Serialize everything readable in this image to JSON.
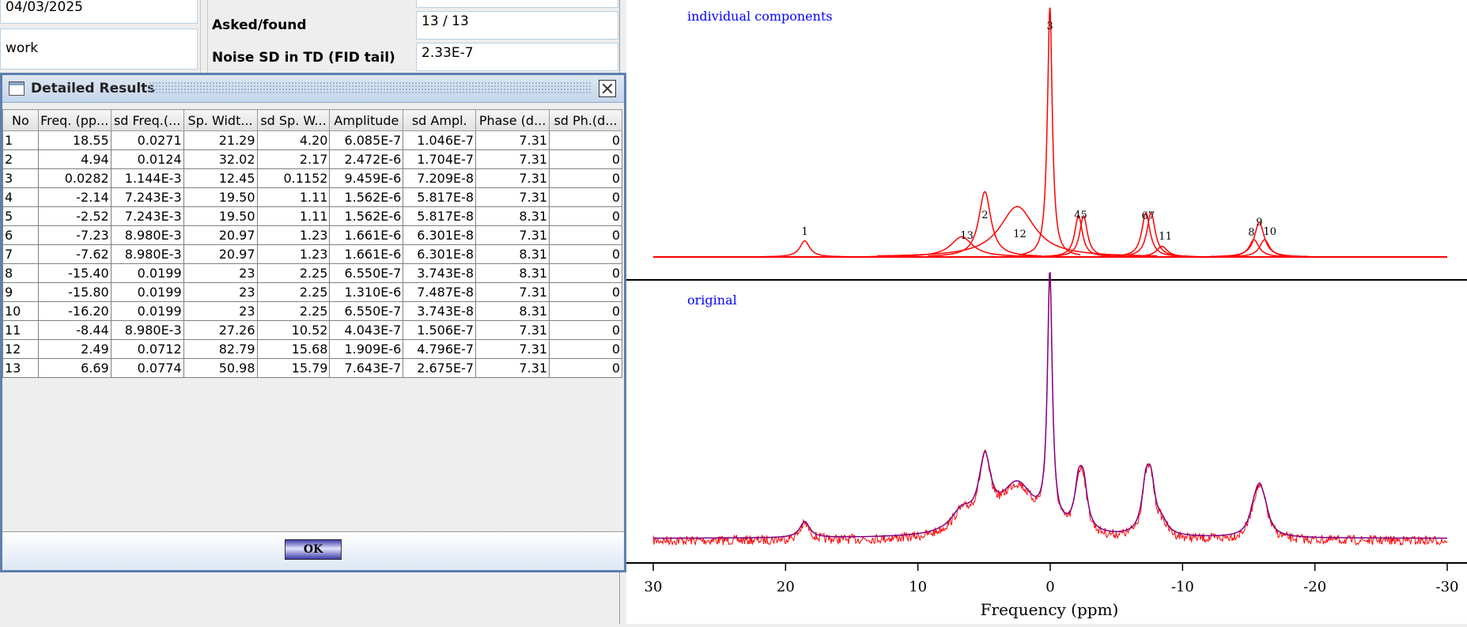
{
  "background": {
    "date_value": "04/03/2025",
    "work_label": "work",
    "asked_found_label": "Asked/found",
    "asked_found_value": "13 / 13",
    "noise_label": "Noise SD in TD (FID tail)",
    "noise_value": "2.33E-7"
  },
  "window": {
    "title": "Detailed Results",
    "ok_label": "OK"
  },
  "table": {
    "columns": [
      "No",
      "Freq. (pp...",
      "sd Freq.(...",
      "Sp. Widt...",
      "sd Sp. W...",
      "Amplitude",
      "sd Ampl.",
      "Phase (d...",
      "sd Ph.(d..."
    ],
    "rows": [
      [
        "1",
        "18.55",
        "0.0271",
        "21.29",
        "4.20",
        "6.085E-7",
        "1.046E-7",
        "7.31",
        "0"
      ],
      [
        "2",
        "4.94",
        "0.0124",
        "32.02",
        "2.17",
        "2.472E-6",
        "1.704E-7",
        "7.31",
        "0"
      ],
      [
        "3",
        "0.0282",
        "1.144E-3",
        "12.45",
        "0.1152",
        "9.459E-6",
        "7.209E-8",
        "7.31",
        "0"
      ],
      [
        "4",
        "-2.14",
        "7.243E-3",
        "19.50",
        "1.11",
        "1.562E-6",
        "5.817E-8",
        "7.31",
        "0"
      ],
      [
        "5",
        "-2.52",
        "7.243E-3",
        "19.50",
        "1.11",
        "1.562E-6",
        "5.817E-8",
        "8.31",
        "0"
      ],
      [
        "6",
        "-7.23",
        "8.980E-3",
        "20.97",
        "1.23",
        "1.661E-6",
        "6.301E-8",
        "7.31",
        "0"
      ],
      [
        "7",
        "-7.62",
        "8.980E-3",
        "20.97",
        "1.23",
        "1.661E-6",
        "6.301E-8",
        "8.31",
        "0"
      ],
      [
        "8",
        "-15.40",
        "0.0199",
        "23",
        "2.25",
        "6.550E-7",
        "3.743E-8",
        "8.31",
        "0"
      ],
      [
        "9",
        "-15.80",
        "0.0199",
        "23",
        "2.25",
        "1.310E-6",
        "7.487E-8",
        "7.31",
        "0"
      ],
      [
        "10",
        "-16.20",
        "0.0199",
        "23",
        "2.25",
        "6.550E-7",
        "3.743E-8",
        "8.31",
        "0"
      ],
      [
        "11",
        "-8.44",
        "8.980E-3",
        "27.26",
        "10.52",
        "4.043E-7",
        "1.506E-7",
        "7.31",
        "0"
      ],
      [
        "12",
        "2.49",
        "0.0712",
        "82.79",
        "15.68",
        "1.909E-6",
        "4.796E-7",
        "7.31",
        "0"
      ],
      [
        "13",
        "6.69",
        "0.0774",
        "50.98",
        "15.79",
        "7.643E-7",
        "2.675E-7",
        "7.31",
        "0"
      ]
    ]
  },
  "chart_data": {
    "type": "line",
    "xlabel": "Frequency (ppm)",
    "xlim": [
      30,
      -30
    ],
    "x_ticks": [
      "30",
      "20",
      "10",
      "0",
      "-10",
      "-20",
      "-30"
    ],
    "colors": {
      "components": "#ff0000",
      "original": "#ff0000",
      "fit": "#800080",
      "label": "#0000ff"
    },
    "panels": [
      {
        "name": "individual components",
        "peak_labels": [
          "1",
          "2",
          "3",
          "45",
          "67",
          "9",
          "8",
          "10",
          "11",
          "12",
          "13"
        ]
      },
      {
        "name": "original"
      }
    ],
    "peaks": [
      {
        "no": 1,
        "ppm": 18.55,
        "amp": 6.085e-07,
        "width": 0.45
      },
      {
        "no": 2,
        "ppm": 4.94,
        "amp": 2.472e-06,
        "width": 0.55
      },
      {
        "no": 3,
        "ppm": 0.0282,
        "amp": 9.459e-06,
        "width": 0.22
      },
      {
        "no": 4,
        "ppm": -2.14,
        "amp": 1.562e-06,
        "width": 0.35
      },
      {
        "no": 5,
        "ppm": -2.52,
        "amp": 1.562e-06,
        "width": 0.35
      },
      {
        "no": 6,
        "ppm": -7.23,
        "amp": 1.661e-06,
        "width": 0.38
      },
      {
        "no": 7,
        "ppm": -7.62,
        "amp": 1.661e-06,
        "width": 0.38
      },
      {
        "no": 8,
        "ppm": -15.4,
        "amp": 6.55e-07,
        "width": 0.45
      },
      {
        "no": 9,
        "ppm": -15.8,
        "amp": 1.31e-06,
        "width": 0.45
      },
      {
        "no": 10,
        "ppm": -16.2,
        "amp": 6.55e-07,
        "width": 0.45
      },
      {
        "no": 11,
        "ppm": -8.44,
        "amp": 4.043e-07,
        "width": 0.5
      },
      {
        "no": 12,
        "ppm": 2.49,
        "amp": 1.909e-06,
        "width": 1.6
      },
      {
        "no": 13,
        "ppm": 6.69,
        "amp": 7.643e-07,
        "width": 1.0
      }
    ]
  }
}
